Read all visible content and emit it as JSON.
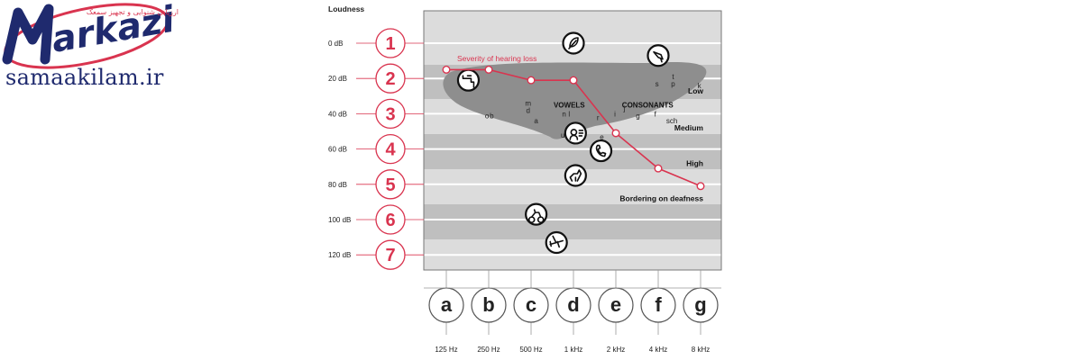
{
  "logo": {
    "brand": "markazi",
    "tagline": "ارزیابی شنوایی و تجهیز سمعک"
  },
  "site_url": "samaakilam.ir",
  "colors": {
    "accent": "#d9344f",
    "band_light": "#dcdcdc",
    "band_dark": "#bfbfbf",
    "blob": "#8e8e8e",
    "logo_blue": "#1f2a6e"
  },
  "chart_data": {
    "type": "line",
    "ylabel": "Loudness",
    "y_ticks": [
      {
        "label": "0 dB",
        "value": 0,
        "num": "1"
      },
      {
        "label": "20 dB",
        "value": 20,
        "num": "2"
      },
      {
        "label": "40 dB",
        "value": 40,
        "num": "3"
      },
      {
        "label": "60 dB",
        "value": 60,
        "num": "4"
      },
      {
        "label": "80 dB",
        "value": 80,
        "num": "5"
      },
      {
        "label": "100 dB",
        "value": 100,
        "num": "6"
      },
      {
        "label": "120 dB",
        "value": 120,
        "num": "7"
      }
    ],
    "ylim": [
      -10,
      125
    ],
    "x_ticks": [
      {
        "label": "125 Hz",
        "letter": "a"
      },
      {
        "label": "250 Hz",
        "letter": "b"
      },
      {
        "label": "500 Hz",
        "letter": "c"
      },
      {
        "label": "1 kHz",
        "letter": "d"
      },
      {
        "label": "2 kHz",
        "letter": "e"
      },
      {
        "label": "4 kHz",
        "letter": "f"
      },
      {
        "label": "8 kHz",
        "letter": "g"
      }
    ],
    "series": [
      {
        "name": "Severity of hearing loss",
        "points": [
          {
            "x": "125 Hz",
            "y": 15
          },
          {
            "x": "250 Hz",
            "y": 15
          },
          {
            "x": "500 Hz",
            "y": 21
          },
          {
            "x": "1 kHz",
            "y": 21
          },
          {
            "x": "2 kHz",
            "y": 51
          },
          {
            "x": "4 kHz",
            "y": 71
          },
          {
            "x": "8 kHz",
            "y": 81
          }
        ]
      }
    ],
    "degree_labels": [
      {
        "text": "Low",
        "y": 27
      },
      {
        "text": "Medium",
        "y": 48
      },
      {
        "text": "High",
        "y": 68
      },
      {
        "text": "Bordering on deafness",
        "y": 88
      }
    ],
    "speech_labels": [
      {
        "text": "VOWELS",
        "x": 2.9,
        "y": 35
      },
      {
        "text": "CONSONANTS",
        "x": 4.75,
        "y": 35
      }
    ],
    "phonemes": [
      {
        "text": "m",
        "x": 1.93,
        "y": 34
      },
      {
        "text": "d",
        "x": 1.93,
        "y": 38
      },
      {
        "text": "a",
        "x": 2.12,
        "y": 44
      },
      {
        "text": "o",
        "x": 0.96,
        "y": 41
      },
      {
        "text": "b",
        "x": 1.07,
        "y": 41
      },
      {
        "text": "n",
        "x": 2.78,
        "y": 40
      },
      {
        "text": "l",
        "x": 2.9,
        "y": 40
      },
      {
        "text": "r",
        "x": 3.58,
        "y": 42
      },
      {
        "text": "i",
        "x": 3.98,
        "y": 40
      },
      {
        "text": "j",
        "x": 4.2,
        "y": 37
      },
      {
        "text": "g",
        "x": 4.52,
        "y": 41
      },
      {
        "text": "f",
        "x": 4.93,
        "y": 40
      },
      {
        "text": "sch",
        "x": 5.32,
        "y": 44
      },
      {
        "text": "s",
        "x": 4.97,
        "y": 23
      },
      {
        "text": "t",
        "x": 5.35,
        "y": 19
      },
      {
        "text": "p",
        "x": 5.35,
        "y": 23
      },
      {
        "text": "k",
        "x": 5.97,
        "y": 24
      },
      {
        "text": "u",
        "x": 2.75,
        "y": 52
      },
      {
        "text": "e",
        "x": 3.67,
        "y": 53
      }
    ],
    "icons": [
      {
        "name": "leaf-icon",
        "x": 3,
        "y": 0
      },
      {
        "name": "bird-icon",
        "x": 5,
        "y": 7
      },
      {
        "name": "faucet-icon",
        "x": 0.52,
        "y": 21
      },
      {
        "name": "speaking-person-icon",
        "x": 3.05,
        "y": 51
      },
      {
        "name": "telephone-icon",
        "x": 3.65,
        "y": 61
      },
      {
        "name": "dog-icon",
        "x": 3.05,
        "y": 75
      },
      {
        "name": "motorcycle-icon",
        "x": 2.12,
        "y": 97
      },
      {
        "name": "airplane-icon",
        "x": 2.6,
        "y": 113
      }
    ]
  }
}
